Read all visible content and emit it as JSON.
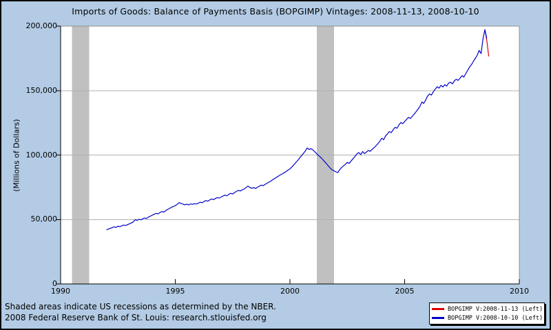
{
  "title": "Imports of Goods: Balance of Payments Basis (BOPGIMP) Vintages: 2008-11-13, 2008-10-10",
  "footer": {
    "line1": "Shaded areas indicate US recessions as determined by the NBER.",
    "line2": "2008 Federal Reserve Bank of St. Louis: research.stlouisfed.org"
  },
  "colors": {
    "page_background": "#b3cbe4",
    "plot_background": "#ffffff",
    "recession_band": "#c0c0c0",
    "gridline": "#b0b0b0",
    "plot_frame": "#909090",
    "axis": "#000000",
    "series_red": "#dd0000",
    "series_blue": "#0000cc"
  },
  "legend": {
    "position": "bottom-right",
    "items": [
      {
        "label": "BOPGIMP V:2008-11-13 (Left)",
        "color": "#dd0000"
      },
      {
        "label": "BOPGIMP V:2008-10-10 (Left)",
        "color": "#0000cc"
      }
    ]
  },
  "chart_data": {
    "type": "line",
    "title": "Imports of Goods: Balance of Payments Basis (BOPGIMP) Vintages: 2008-11-13, 2008-10-10",
    "xlabel": "",
    "ylabel": "(Millions of Dollars)",
    "xlim": [
      1990,
      2010
    ],
    "ylim": [
      0,
      200000
    ],
    "grid": true,
    "gridline_values": [
      50000,
      100000,
      150000
    ],
    "x_ticks": [
      {
        "value": 1990,
        "label": "1990"
      },
      {
        "value": 1995,
        "label": "1995"
      },
      {
        "value": 2000,
        "label": "2000"
      },
      {
        "value": 2005,
        "label": "2005"
      },
      {
        "value": 2010,
        "label": "2010"
      }
    ],
    "y_ticks": [
      {
        "value": 0,
        "label": "0"
      },
      {
        "value": 50000,
        "label": "50,000"
      },
      {
        "value": 100000,
        "label": "100,000"
      },
      {
        "value": 150000,
        "label": "150,000"
      },
      {
        "value": 200000,
        "label": "200,000"
      }
    ],
    "recessions": [
      {
        "start": 1990.5,
        "end": 1991.25
      },
      {
        "start": 2001.17,
        "end": 2001.92
      }
    ],
    "series": [
      {
        "name": "BOPGIMP V:2008-11-13 (Left)",
        "color": "#dd0000",
        "x": [
          2008.5,
          2008.583,
          2008.667
        ],
        "values": [
          197300,
          188900,
          176500
        ]
      },
      {
        "name": "BOPGIMP V:2008-10-10 (Left)",
        "color": "#0000cc",
        "start_year": 1992.0,
        "frequency": "monthly",
        "values": [
          42000,
          42600,
          43100,
          43700,
          44300,
          43900,
          44800,
          44400,
          45100,
          45700,
          45300,
          46000,
          46600,
          47300,
          48100,
          49800,
          49300,
          50200,
          49700,
          50600,
          51200,
          50800,
          51900,
          52600,
          53400,
          54100,
          54800,
          54300,
          55400,
          56200,
          55700,
          56900,
          57800,
          58600,
          59400,
          60100,
          60700,
          61800,
          63100,
          62500,
          62000,
          61400,
          61900,
          61300,
          62100,
          61700,
          62300,
          62000,
          62600,
          63400,
          63000,
          63900,
          64700,
          64200,
          65100,
          65900,
          65400,
          66300,
          67000,
          66600,
          67400,
          68200,
          68900,
          68400,
          69500,
          70300,
          69800,
          70900,
          71800,
          72600,
          72100,
          73000,
          73600,
          74800,
          75900,
          74900,
          74200,
          74800,
          74100,
          75000,
          75800,
          76700,
          76200,
          77300,
          78100,
          79000,
          79800,
          80900,
          81700,
          82800,
          83700,
          84600,
          85400,
          86300,
          87200,
          88300,
          89300,
          90800,
          92400,
          94100,
          95700,
          97600,
          99400,
          101200,
          103100,
          105500,
          104300,
          104900,
          104000,
          102500,
          101000,
          99600,
          98300,
          96800,
          95100,
          93500,
          91700,
          89900,
          88600,
          87800,
          87000,
          86400,
          88600,
          90300,
          91600,
          92900,
          94300,
          93500,
          95400,
          97200,
          98900,
          100800,
          101900,
          100300,
          102700,
          101100,
          102300,
          103600,
          102900,
          104400,
          105700,
          107200,
          108800,
          110600,
          113000,
          111900,
          114800,
          116400,
          118200,
          117400,
          119700,
          121500,
          120800,
          123300,
          125200,
          124400,
          126000,
          127700,
          129200,
          128300,
          130100,
          131800,
          133600,
          135500,
          137700,
          141200,
          140000,
          142600,
          145700,
          147400,
          146500,
          149000,
          151100,
          153000,
          151900,
          154100,
          152800,
          154600,
          153500,
          155800,
          156500,
          155200,
          157600,
          158800,
          157900,
          159700,
          161600,
          160500,
          163200,
          165700,
          168300,
          170200,
          172800,
          175000,
          177600,
          181200,
          178700,
          190300,
          197300,
          190300
        ]
      }
    ]
  }
}
